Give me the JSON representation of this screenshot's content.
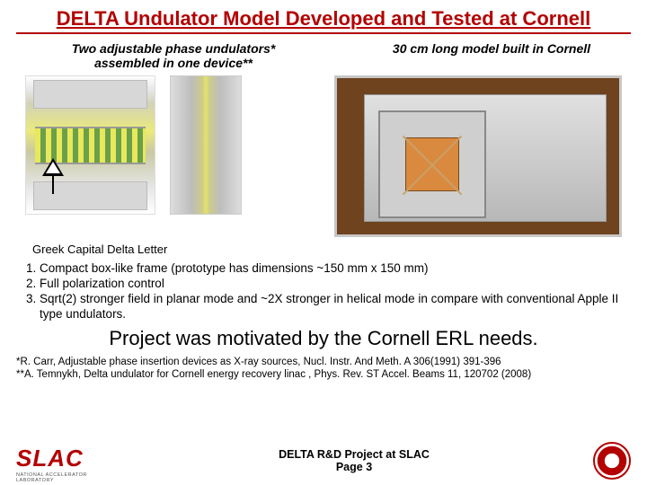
{
  "title": "DELTA Undulator Model Developed and Tested at Cornell",
  "subhead_left_line1": "Two adjustable phase undulators*",
  "subhead_left_line2": "assembled in one device**",
  "subhead_right": "30 cm long model built in Cornell",
  "greek_label": "Greek Capital Delta Letter",
  "bullets": {
    "b1": "Compact box-like frame (prototype has dimensions ~150 mm x 150 mm)",
    "b2": "Full polarization control",
    "b3": "Sqrt(2) stronger field in planar mode and ~2X  stronger in helical mode in compare with conventional Apple II type undulators."
  },
  "motivation": "Project  was motivated by the Cornell ERL needs.",
  "ref1": "*R. Carr, Adjustable phase insertion devices as X-ray sources, Nucl. Instr. And Meth. A 306(1991) 391-396",
  "ref2": "**A. Temnykh, Delta undulator for Cornell energy recovery linac , Phys. Rev. ST Accel. Beams 11, 120702 (2008)",
  "footer": {
    "slac": "SLAC",
    "slac_sub": "NATIONAL ACCELERATOR LABORATORY",
    "center_line1": "DELTA R&D Project at SLAC",
    "center_line2": "Page 3"
  },
  "colors": {
    "accent": "#b30000",
    "text": "#000000",
    "bg": "#ffffff"
  }
}
